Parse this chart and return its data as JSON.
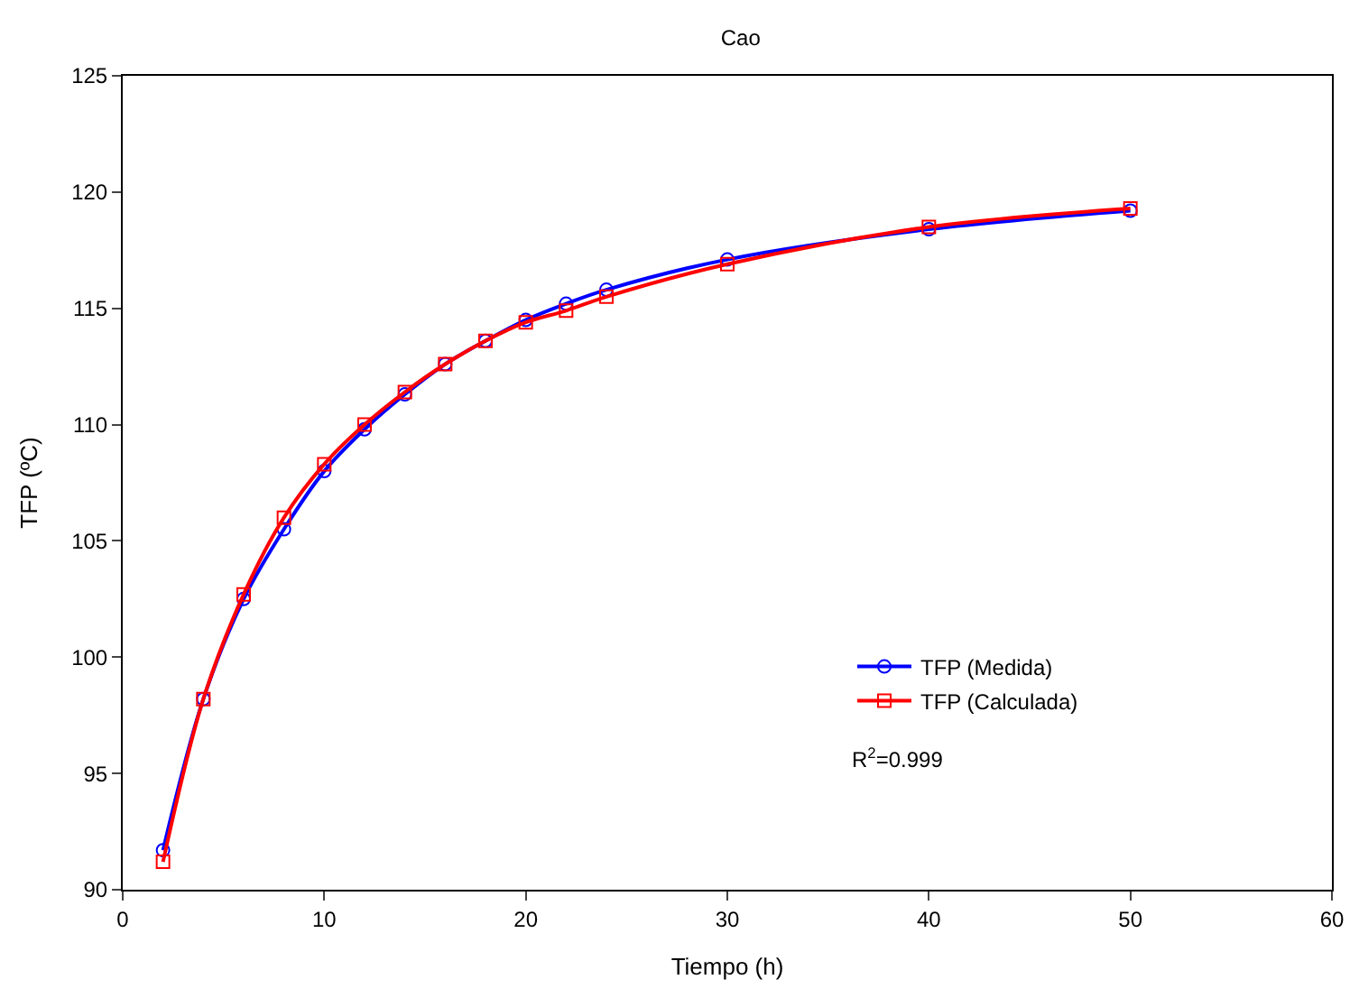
{
  "chart_data": {
    "type": "line",
    "title": "Cao",
    "xlabel": "Tiempo (h)",
    "ylabel": "TFP (ºC)",
    "x": [
      2,
      4,
      6,
      8,
      10,
      12,
      14,
      16,
      18,
      20,
      22,
      24,
      30,
      40,
      50
    ],
    "series": [
      {
        "name": "TFP (Medida)",
        "color": "#0000ff",
        "marker": "circle",
        "values": [
          91.7,
          98.2,
          102.5,
          105.5,
          108.0,
          109.8,
          111.3,
          112.6,
          113.6,
          114.5,
          115.2,
          115.8,
          117.1,
          118.4,
          119.2
        ]
      },
      {
        "name": "TFP (Calculada)",
        "color": "#ff0000",
        "marker": "square",
        "values": [
          91.2,
          98.2,
          102.7,
          106.0,
          108.3,
          110.0,
          111.4,
          112.6,
          113.6,
          114.4,
          114.9,
          115.5,
          116.9,
          118.5,
          119.3
        ]
      }
    ],
    "xlim": [
      0,
      60
    ],
    "xticks": [
      0,
      10,
      20,
      30,
      40,
      50,
      60
    ],
    "ylim": [
      90,
      125
    ],
    "yticks": [
      90,
      95,
      100,
      105,
      110,
      115,
      120,
      125
    ],
    "legend": "bottom right",
    "line_style": "solid",
    "annotations": [
      "R$^{2}$=0.999"
    ]
  }
}
